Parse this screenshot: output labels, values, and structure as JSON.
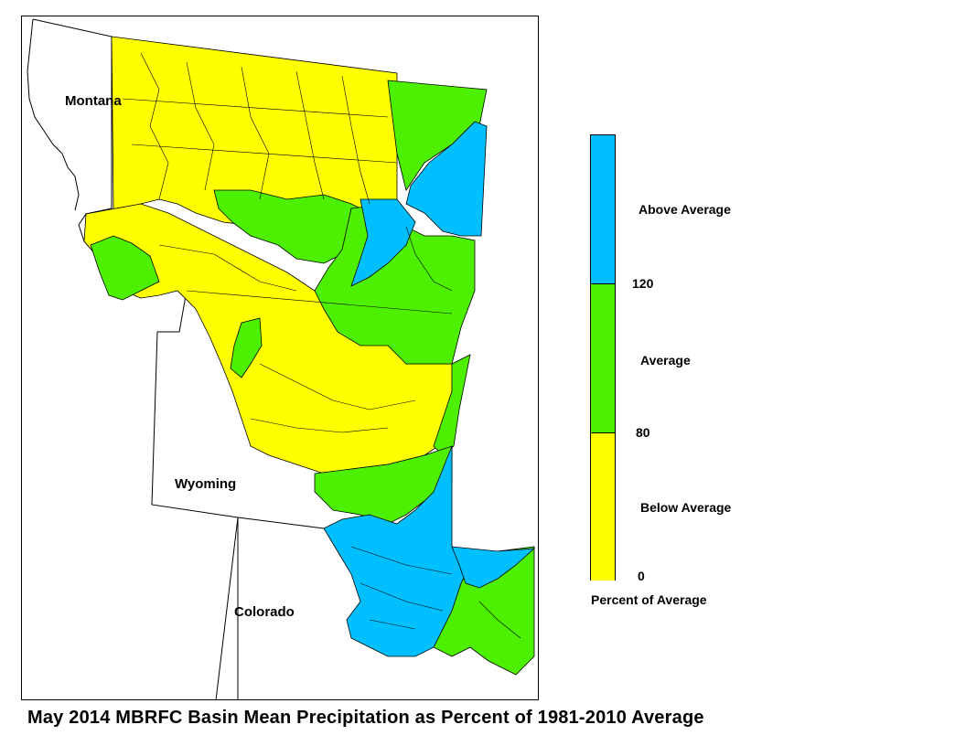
{
  "title": "May 2014 MBRFC Basin Mean Precipitation as Percent of 1981-2010 Average",
  "map": {
    "state_labels": [
      "Montana",
      "Wyoming",
      "Colorado"
    ]
  },
  "legend": {
    "title": "Percent of Average",
    "categories": [
      {
        "label": "Above Average",
        "color": "#00bfff",
        "range": [
          120,
          null
        ]
      },
      {
        "label": "Average",
        "color": "#4cf000",
        "range": [
          80,
          120
        ]
      },
      {
        "label": "Below Average",
        "color": "#ffff00",
        "range": [
          0,
          80
        ]
      }
    ],
    "ticks": [
      "120",
      "80",
      "0"
    ]
  },
  "colors": {
    "above": "#00bfff",
    "average": "#4cf000",
    "below": "#ffff00",
    "boundary": "#000000"
  }
}
